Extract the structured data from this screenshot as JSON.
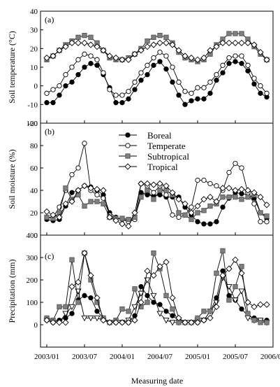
{
  "x_axis": {
    "label": "Measuring date",
    "ticks": [
      "2003/01",
      "2003/07",
      "2004/01",
      "2004/07",
      "2005/01",
      "2005/07",
      "2006/01"
    ],
    "tick_positions": [
      0,
      6,
      12,
      18,
      24,
      30,
      36
    ],
    "range": [
      -1,
      36
    ]
  },
  "legend": {
    "placement": "panel (b), upper center",
    "entries": [
      {
        "name": "Boreal",
        "marker": "filled-circle"
      },
      {
        "name": "Temperate",
        "marker": "open-circle"
      },
      {
        "name": "Subtropical",
        "marker": "filled-square"
      },
      {
        "name": "Tropical",
        "marker": "open-diamond"
      }
    ]
  },
  "styles": {
    "Boreal": {
      "marker": "circle",
      "fill": "#000000",
      "stroke": "#000000"
    },
    "Temperate": {
      "marker": "circle",
      "fill": "#ffffff",
      "stroke": "#000000"
    },
    "Subtropical": {
      "marker": "square",
      "fill": "#7f7f7f",
      "stroke": "#555555"
    },
    "Tropical": {
      "marker": "diamond",
      "fill": "#ffffff",
      "stroke": "#000000"
    },
    "Boreal_precip": {
      "marker": "circle",
      "fill": "#000000",
      "stroke": "#000000"
    },
    "Temperate_precip": {
      "marker": "triangle-down",
      "fill": "#ffffff",
      "stroke": "#000000"
    },
    "Subtropical_precip": {
      "marker": "square",
      "fill": "#7f7f7f",
      "stroke": "#555555"
    },
    "Tropical_precip": {
      "marker": "diamond",
      "fill": "#ffffff",
      "stroke": "#000000"
    }
  },
  "chart_data": [
    {
      "type": "line",
      "panel_label": "(a)",
      "ylabel": "Soil temperature (°C)",
      "ylim": [
        -20,
        40
      ],
      "yticks": [
        -20,
        -10,
        0,
        10,
        20,
        30,
        40
      ],
      "x": [
        0,
        1,
        2,
        3,
        4,
        5,
        6,
        7,
        8,
        9,
        10,
        11,
        12,
        13,
        14,
        15,
        16,
        17,
        18,
        19,
        20,
        21,
        22,
        23,
        24,
        25,
        26,
        27,
        28,
        29,
        30,
        31,
        32,
        33,
        34,
        35
      ],
      "series": [
        {
          "name": "Boreal",
          "values": [
            -9,
            -9,
            -5,
            0,
            2,
            6,
            10,
            12,
            11,
            6,
            -1,
            -9,
            -9,
            -7,
            -2,
            3,
            6,
            11,
            13,
            9,
            2,
            -5,
            -10,
            -8,
            -7,
            -7,
            -4,
            3,
            7,
            12,
            13,
            12,
            8,
            1,
            -4,
            -6
          ]
        },
        {
          "name": "Temperate",
          "values": [
            -4,
            -2,
            0,
            6,
            10,
            14,
            17,
            16,
            14,
            7,
            -2,
            -5,
            -5,
            -3,
            2,
            7,
            11,
            15,
            18,
            16,
            10,
            2,
            -3,
            -4,
            -1,
            -1,
            2,
            6,
            11,
            15,
            16,
            16,
            11,
            4,
            0,
            -4
          ]
        },
        {
          "name": "Subtropical",
          "values": [
            14,
            16,
            19,
            22,
            24,
            26,
            27,
            26,
            23,
            19,
            15,
            14,
            14,
            15,
            17,
            20,
            24,
            26,
            27,
            26,
            23,
            18,
            15,
            14,
            13,
            14,
            17,
            22,
            25,
            28,
            28,
            28,
            25,
            21,
            17,
            14
          ]
        },
        {
          "name": "Tropical",
          "values": [
            15,
            16,
            19,
            21,
            23,
            23,
            23,
            22,
            21,
            19,
            16,
            15,
            14,
            14,
            17,
            19,
            21,
            22,
            23,
            23,
            22,
            19,
            16,
            15,
            14,
            15,
            19,
            21,
            23,
            23,
            23,
            23,
            23,
            22,
            18,
            14
          ]
        }
      ]
    },
    {
      "type": "line",
      "panel_label": "(b)",
      "ylabel": "Soil moisture (%)",
      "ylim": [
        0,
        100
      ],
      "yticks": [
        0,
        20,
        40,
        60,
        80,
        100
      ],
      "x": [
        0,
        1,
        2,
        3,
        4,
        5,
        6,
        7,
        8,
        9,
        10,
        11,
        12,
        13,
        14,
        15,
        16,
        17,
        18,
        19,
        20,
        21,
        22,
        23,
        24,
        25,
        26,
        27,
        28,
        29,
        30,
        31,
        32,
        33,
        34,
        35
      ],
      "series": [
        {
          "name": "Boreal",
          "values": [
            14,
            13,
            14,
            26,
            38,
            40,
            44,
            43,
            40,
            36,
            20,
            16,
            14,
            13,
            14,
            38,
            36,
            35,
            36,
            34,
            34,
            34,
            25,
            18,
            12,
            10,
            10,
            12,
            25,
            33,
            38,
            37,
            36,
            33,
            20,
            15
          ]
        },
        {
          "name": "Temperate",
          "values": [
            16,
            16,
            25,
            40,
            54,
            60,
            82,
            40,
            36,
            33,
            18,
            15,
            14,
            12,
            14,
            46,
            44,
            38,
            44,
            36,
            18,
            16,
            18,
            25,
            49,
            49,
            46,
            44,
            40,
            56,
            64,
            60,
            38,
            28,
            12,
            12
          ]
        },
        {
          "name": "Subtropical",
          "values": [
            16,
            15,
            20,
            42,
            32,
            36,
            26,
            30,
            30,
            28,
            16,
            15,
            15,
            14,
            16,
            34,
            40,
            32,
            40,
            40,
            36,
            20,
            18,
            14,
            20,
            22,
            26,
            28,
            34,
            34,
            34,
            32,
            34,
            36,
            20,
            17
          ]
        },
        {
          "name": "Tropical",
          "values": [
            21,
            18,
            16,
            28,
            30,
            40,
            44,
            42,
            41,
            40,
            16,
            13,
            10,
            8,
            20,
            46,
            46,
            45,
            46,
            44,
            38,
            32,
            28,
            20,
            26,
            32,
            34,
            30,
            42,
            42,
            40,
            41,
            40,
            38,
            34,
            27
          ]
        }
      ]
    },
    {
      "type": "line",
      "panel_label": "(c)",
      "ylabel": "Precipitation (mm)",
      "ylim": [
        -100,
        400
      ],
      "yticks": [
        0,
        100,
        200,
        300,
        400
      ],
      "x": [
        0,
        1,
        2,
        3,
        4,
        5,
        6,
        7,
        8,
        9,
        10,
        11,
        12,
        13,
        14,
        15,
        16,
        17,
        18,
        19,
        20,
        21,
        22,
        23,
        24,
        25,
        26,
        27,
        28,
        29,
        30,
        31,
        32,
        33,
        34,
        35
      ],
      "series": [
        {
          "name": "Boreal",
          "values": [
            20,
            10,
            20,
            30,
            50,
            110,
            130,
            120,
            60,
            30,
            10,
            10,
            10,
            10,
            40,
            170,
            130,
            100,
            90,
            60,
            40,
            20,
            10,
            10,
            10,
            20,
            60,
            120,
            240,
            130,
            110,
            70,
            40,
            30,
            20,
            20
          ]
        },
        {
          "name": "Temperate",
          "values": [
            20,
            10,
            10,
            50,
            80,
            150,
            30,
            30,
            30,
            20,
            10,
            10,
            10,
            20,
            80,
            140,
            200,
            130,
            50,
            20,
            10,
            10,
            10,
            10,
            20,
            20,
            60,
            100,
            210,
            170,
            110,
            150,
            30,
            20,
            20,
            10
          ]
        },
        {
          "name": "Subtropical",
          "values": [
            30,
            20,
            80,
            80,
            290,
            100,
            320,
            200,
            100,
            30,
            10,
            20,
            70,
            60,
            160,
            80,
            100,
            320,
            250,
            130,
            70,
            10,
            10,
            10,
            30,
            60,
            60,
            230,
            330,
            110,
            170,
            260,
            50,
            20,
            10,
            10
          ]
        },
        {
          "name": "Tropical",
          "values": [
            20,
            10,
            10,
            10,
            170,
            190,
            320,
            220,
            120,
            20,
            10,
            10,
            10,
            10,
            20,
            100,
            240,
            220,
            260,
            280,
            120,
            30,
            10,
            10,
            10,
            20,
            30,
            80,
            220,
            250,
            290,
            230,
            100,
            80,
            90,
            90
          ]
        }
      ]
    }
  ]
}
